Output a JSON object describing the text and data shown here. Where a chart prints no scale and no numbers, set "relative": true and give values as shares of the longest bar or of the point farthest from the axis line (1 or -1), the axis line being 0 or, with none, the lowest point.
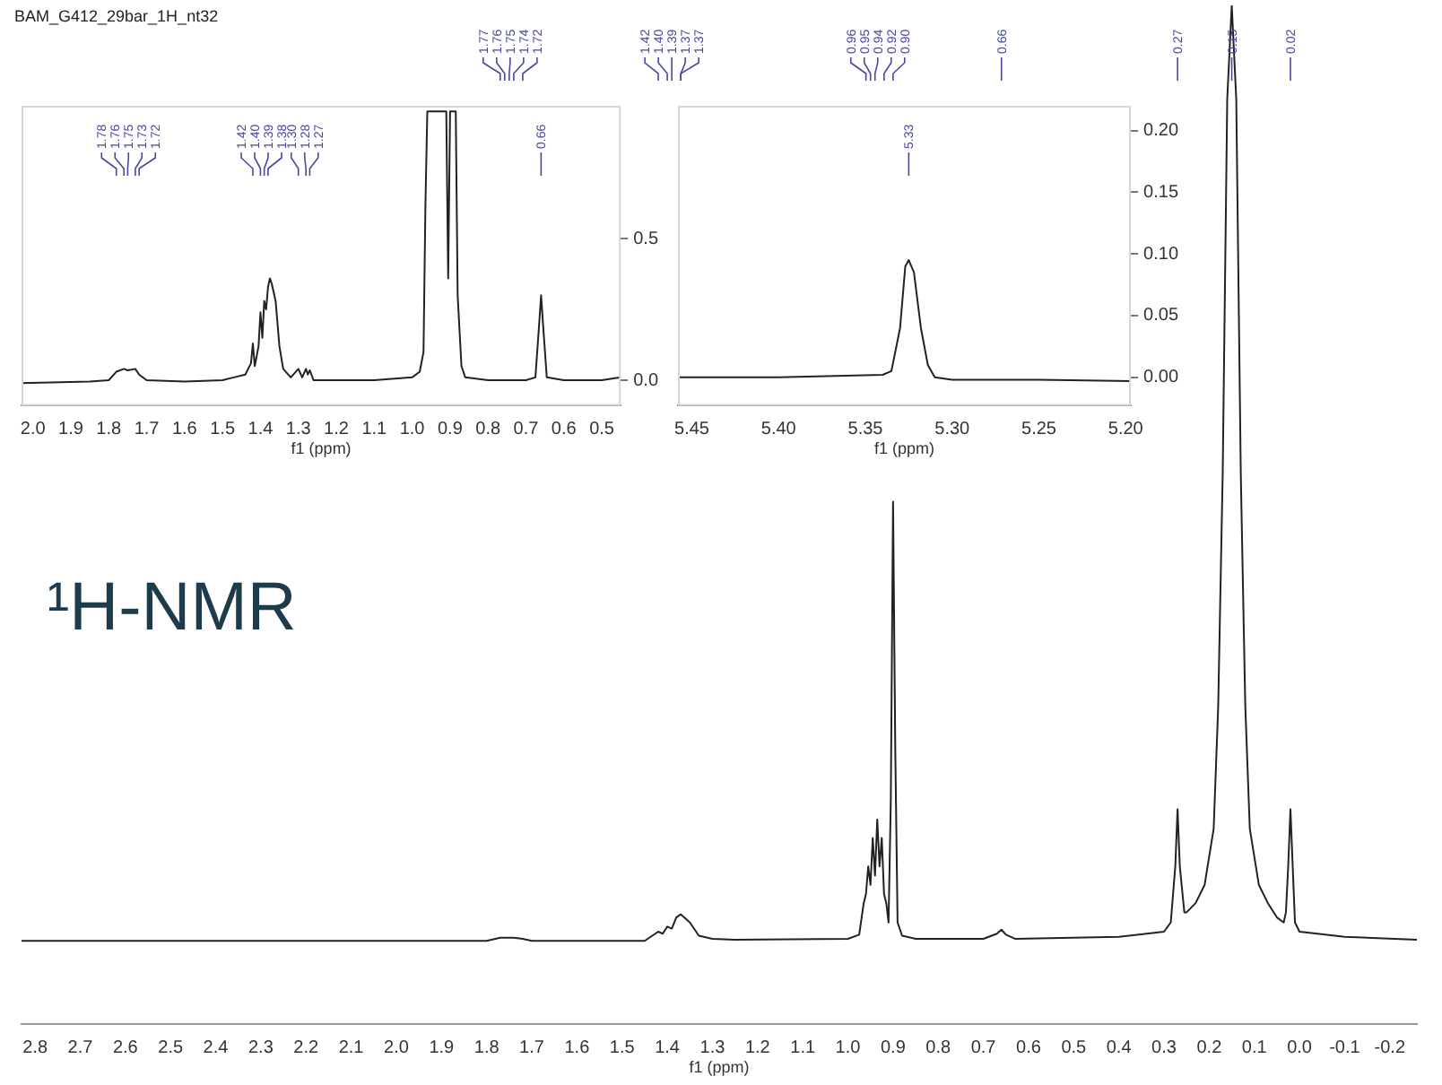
{
  "chart_data": [
    {
      "type": "line",
      "title": "BAM_G412_29bar_1H_nt32",
      "xlabel": "f1 (ppm)",
      "relative": true,
      "grid": false,
      "legend": false,
      "tick_labels": "x",
      "xlim": [
        2.83,
        -0.26
      ],
      "xticks": [
        {
          "value": 2.8,
          "label": "2.8"
        },
        {
          "value": 2.7,
          "label": "2.7"
        },
        {
          "value": 2.6,
          "label": "2.6"
        },
        {
          "value": 2.5,
          "label": "2.5"
        },
        {
          "value": 2.4,
          "label": "2.4"
        },
        {
          "value": 2.3,
          "label": "2.3"
        },
        {
          "value": 2.2,
          "label": "2.2"
        },
        {
          "value": 2.1,
          "label": "2.1"
        },
        {
          "value": 2.0,
          "label": "2.0"
        },
        {
          "value": 1.9,
          "label": "1.9"
        },
        {
          "value": 1.8,
          "label": "1.8"
        },
        {
          "value": 1.7,
          "label": "1.7"
        },
        {
          "value": 1.6,
          "label": "1.6"
        },
        {
          "value": 1.5,
          "label": "1.5"
        },
        {
          "value": 1.4,
          "label": "1.4"
        },
        {
          "value": 1.3,
          "label": "1.3"
        },
        {
          "value": 1.2,
          "label": "1.2"
        },
        {
          "value": 1.1,
          "label": "1.1"
        },
        {
          "value": 1.0,
          "label": "1.0"
        },
        {
          "value": 0.9,
          "label": "0.9"
        },
        {
          "value": 0.8,
          "label": "0.8"
        },
        {
          "value": 0.7,
          "label": "0.7"
        },
        {
          "value": 0.6,
          "label": "0.6"
        },
        {
          "value": 0.5,
          "label": "0.5"
        },
        {
          "value": 0.4,
          "label": "0.4"
        },
        {
          "value": 0.3,
          "label": "0.3"
        },
        {
          "value": 0.2,
          "label": "0.2"
        },
        {
          "value": 0.1,
          "label": "0.1"
        },
        {
          "value": 0.0,
          "label": "0.0"
        },
        {
          "value": -0.1,
          "label": "-0.1"
        },
        {
          "value": -0.2,
          "label": "-0.2"
        }
      ],
      "series": [
        {
          "color": "#222222",
          "x": [
            2.83,
            1.8,
            1.77,
            1.74,
            1.72,
            1.7,
            1.45,
            1.42,
            1.41,
            1.4,
            1.39,
            1.38,
            1.37,
            1.35,
            1.33,
            1.3,
            1.25,
            1.0,
            0.975,
            0.965,
            0.96,
            0.955,
            0.95,
            0.945,
            0.94,
            0.935,
            0.93,
            0.925,
            0.92,
            0.915,
            0.91,
            0.905,
            0.9,
            0.895,
            0.89,
            0.88,
            0.85,
            0.7,
            0.67,
            0.66,
            0.65,
            0.63,
            0.4,
            0.3,
            0.285,
            0.275,
            0.27,
            0.265,
            0.255,
            0.25,
            0.23,
            0.21,
            0.19,
            0.18,
            0.17,
            0.16,
            0.15,
            0.14,
            0.13,
            0.12,
            0.11,
            0.09,
            0.07,
            0.05,
            0.035,
            0.03,
            0.025,
            0.02,
            0.015,
            0.01,
            0.0,
            -0.1,
            -0.26
          ],
          "values": [
            0.082,
            0.082,
            0.085,
            0.085,
            0.084,
            0.082,
            0.082,
            0.091,
            0.089,
            0.096,
            0.094,
            0.105,
            0.108,
            0.1,
            0.087,
            0.084,
            0.083,
            0.084,
            0.088,
            0.119,
            0.128,
            0.155,
            0.137,
            0.183,
            0.146,
            0.201,
            0.155,
            0.183,
            0.128,
            0.119,
            0.1,
            0.22,
            0.513,
            0.266,
            0.1,
            0.087,
            0.084,
            0.084,
            0.089,
            0.093,
            0.088,
            0.084,
            0.086,
            0.091,
            0.1,
            0.155,
            0.211,
            0.155,
            0.11,
            0.11,
            0.119,
            0.137,
            0.192,
            0.312,
            0.541,
            0.908,
            1,
            0.908,
            0.541,
            0.312,
            0.192,
            0.137,
            0.119,
            0.105,
            0.1,
            0.11,
            0.155,
            0.211,
            0.155,
            0.1,
            0.091,
            0.086,
            0.083
          ]
        }
      ],
      "annotations": [
        "¹H-NMR",
        {
          "text": "1.77",
          "x": 1.77
        },
        {
          "text": "1.76",
          "x": 1.76
        },
        {
          "text": "1.75",
          "x": 1.75
        },
        {
          "text": "1.74",
          "x": 1.74
        },
        {
          "text": "1.72",
          "x": 1.72
        },
        {
          "text": "1.42",
          "x": 1.42
        },
        {
          "text": "1.40",
          "x": 1.4
        },
        {
          "text": "1.39",
          "x": 1.39
        },
        {
          "text": "1.37",
          "x": 1.37
        },
        {
          "text": "1.37",
          "x": 1.37
        },
        {
          "text": "0.96",
          "x": 0.96
        },
        {
          "text": "0.95",
          "x": 0.95
        },
        {
          "text": "0.94",
          "x": 0.94
        },
        {
          "text": "0.92",
          "x": 0.92
        },
        {
          "text": "0.90",
          "x": 0.9
        },
        {
          "text": "0.66",
          "x": 0.66
        },
        {
          "text": "0.27",
          "x": 0.27
        },
        {
          "text": "0.15",
          "x": 0.15
        },
        {
          "text": "0.02",
          "x": 0.02
        }
      ]
    },
    {
      "type": "line",
      "xlabel": "f1 (ppm)",
      "grid": false,
      "legend": false,
      "xlim": [
        2.03,
        0.45
      ],
      "ylim": [
        -0.09,
        0.97
      ],
      "xticks": [
        {
          "value": 2.0,
          "label": "2.0"
        },
        {
          "value": 1.9,
          "label": "1.9"
        },
        {
          "value": 1.8,
          "label": "1.8"
        },
        {
          "value": 1.7,
          "label": "1.7"
        },
        {
          "value": 1.6,
          "label": "1.6"
        },
        {
          "value": 1.5,
          "label": "1.5"
        },
        {
          "value": 1.4,
          "label": "1.4"
        },
        {
          "value": 1.3,
          "label": "1.3"
        },
        {
          "value": 1.2,
          "label": "1.2"
        },
        {
          "value": 1.1,
          "label": "1.1"
        },
        {
          "value": 1.0,
          "label": "1.0"
        },
        {
          "value": 0.9,
          "label": "0.9"
        },
        {
          "value": 0.8,
          "label": "0.8"
        },
        {
          "value": 0.7,
          "label": "0.7"
        },
        {
          "value": 0.6,
          "label": "0.6"
        },
        {
          "value": 0.5,
          "label": "0.5"
        }
      ],
      "yticks": [
        {
          "value": 0,
          "label": "0.0"
        },
        {
          "value": 0.5,
          "label": "0.5"
        }
      ],
      "series": [
        {
          "color": "#222222",
          "x": [
            2.03,
            1.85,
            1.8,
            1.78,
            1.76,
            1.75,
            1.73,
            1.72,
            1.7,
            1.6,
            1.5,
            1.47,
            1.44,
            1.425,
            1.42,
            1.415,
            1.405,
            1.4,
            1.395,
            1.39,
            1.385,
            1.38,
            1.375,
            1.37,
            1.36,
            1.35,
            1.34,
            1.32,
            1.3,
            1.29,
            1.28,
            1.275,
            1.27,
            1.26,
            1.2,
            1.1,
            1.0,
            0.98,
            0.97,
            0.965,
            0.96,
            0.95,
            0.94,
            0.93,
            0.92,
            0.91,
            0.905,
            0.9,
            0.885,
            0.88,
            0.87,
            0.86,
            0.8,
            0.7,
            0.675,
            0.665,
            0.66,
            0.655,
            0.645,
            0.6,
            0.5,
            0.45
          ],
          "values": [
            -0.01,
            -0.005,
            0,
            0.03,
            0.04,
            0.035,
            0.04,
            0.02,
            0,
            -0.005,
            0,
            0.01,
            0.02,
            0.06,
            0.13,
            0.05,
            0.12,
            0.24,
            0.15,
            0.28,
            0.25,
            0.33,
            0.36,
            0.34,
            0.28,
            0.12,
            0.04,
            0.01,
            0.04,
            0.01,
            0.04,
            0.02,
            0.035,
            0,
            0,
            0,
            0.01,
            0.03,
            0.1,
            0.62,
            0.95,
            0.95,
            0.95,
            0.95,
            0.95,
            0.95,
            0.36,
            0.95,
            0.95,
            0.3,
            0.05,
            0.01,
            0,
            0,
            0.01,
            0.2,
            0.3,
            0.2,
            0.01,
            0,
            0,
            0.01
          ]
        }
      ],
      "annotations": [
        {
          "text": "1.78",
          "x": 1.78
        },
        {
          "text": "1.76",
          "x": 1.76
        },
        {
          "text": "1.75",
          "x": 1.75
        },
        {
          "text": "1.73",
          "x": 1.73
        },
        {
          "text": "1.72",
          "x": 1.72
        },
        {
          "text": "1.42",
          "x": 1.42
        },
        {
          "text": "1.40",
          "x": 1.4
        },
        {
          "text": "1.39",
          "x": 1.39
        },
        {
          "text": "1.38",
          "x": 1.38
        },
        {
          "text": "1.30",
          "x": 1.3
        },
        {
          "text": "1.28",
          "x": 1.28
        },
        {
          "text": "1.27",
          "x": 1.27
        },
        {
          "text": "0.66",
          "x": 0.66
        }
      ]
    },
    {
      "type": "line",
      "xlabel": "f1 (ppm)",
      "grid": false,
      "legend": false,
      "xlim": [
        5.458,
        5.197
      ],
      "ylim": [
        -0.023,
        0.22
      ],
      "xticks": [
        {
          "value": 5.45,
          "label": "5.45"
        },
        {
          "value": 5.4,
          "label": "5.40"
        },
        {
          "value": 5.35,
          "label": "5.35"
        },
        {
          "value": 5.3,
          "label": "5.30"
        },
        {
          "value": 5.25,
          "label": "5.25"
        },
        {
          "value": 5.2,
          "label": "5.20"
        }
      ],
      "yticks": [
        {
          "value": 0,
          "label": "0.00"
        },
        {
          "value": 0.05,
          "label": "0.05"
        },
        {
          "value": 0.1,
          "label": "0.10"
        },
        {
          "value": 0.15,
          "label": "0.15"
        },
        {
          "value": 0.2,
          "label": "0.20"
        }
      ],
      "series": [
        {
          "color": "#222222",
          "x": [
            5.458,
            5.4,
            5.34,
            5.335,
            5.33,
            5.327,
            5.325,
            5.322,
            5.318,
            5.314,
            5.31,
            5.3,
            5.25,
            5.197
          ],
          "values": [
            0,
            0,
            0.002,
            0.005,
            0.04,
            0.09,
            0.095,
            0.085,
            0.04,
            0.01,
            0,
            -0.002,
            -0.002,
            -0.003
          ]
        }
      ],
      "annotations": [
        {
          "text": "5.33",
          "x": 5.325
        }
      ]
    }
  ]
}
